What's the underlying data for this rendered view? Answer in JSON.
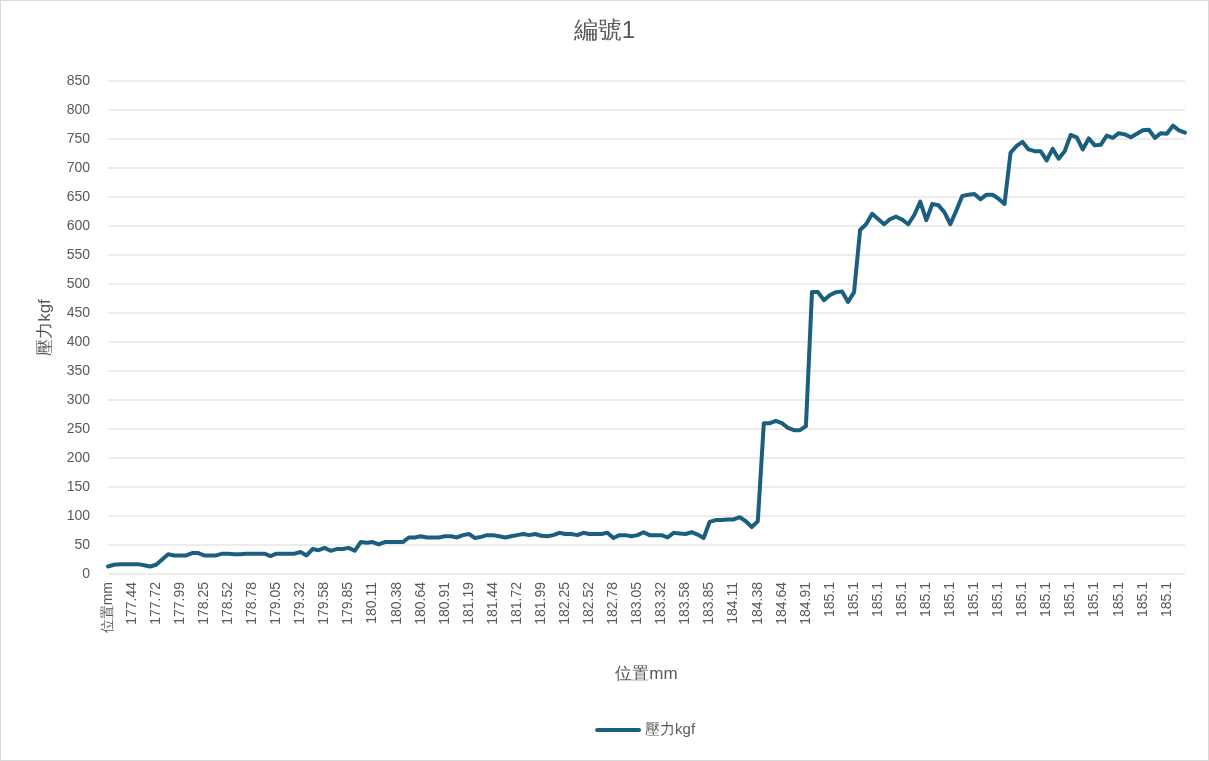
{
  "chart_data": {
    "type": "line",
    "title": "編號1",
    "xlabel": "位置mm",
    "ylabel": "壓力kgf",
    "categories": [
      "位置mm",
      null,
      null,
      null,
      "177.44",
      null,
      null,
      null,
      "177.72",
      null,
      null,
      null,
      "177.99",
      null,
      null,
      null,
      "178.25",
      null,
      null,
      null,
      "178.52",
      null,
      null,
      null,
      "178.78",
      null,
      null,
      null,
      "179.05",
      null,
      null,
      null,
      "179.32",
      null,
      null,
      null,
      "179.58",
      null,
      null,
      null,
      "179.85",
      null,
      null,
      null,
      "180.11",
      null,
      null,
      null,
      "180.38",
      null,
      null,
      null,
      "180.64",
      null,
      null,
      null,
      "180.91",
      null,
      null,
      null,
      "181.19",
      null,
      null,
      null,
      "181.44",
      null,
      null,
      null,
      "181.72",
      null,
      null,
      null,
      "181.99",
      null,
      null,
      null,
      "182.25",
      null,
      null,
      null,
      "182.52",
      null,
      null,
      null,
      "182.78",
      null,
      null,
      null,
      "183.05",
      null,
      null,
      null,
      "183.32",
      null,
      null,
      null,
      "183.58",
      null,
      null,
      null,
      "183.85",
      null,
      null,
      null,
      "184.11",
      null,
      null,
      null,
      "184.38",
      null,
      null,
      null,
      "184.64",
      null,
      null,
      null,
      "184.91",
      null,
      null,
      null,
      "185.1",
      null,
      null,
      null,
      "185.1",
      null,
      null,
      null,
      "185.1",
      null,
      null,
      null,
      "185.1",
      null,
      null,
      null,
      "185.1",
      null,
      null,
      null,
      "185.1",
      null,
      null,
      null,
      "185.1",
      null,
      null,
      null,
      "185.1",
      null,
      null,
      null,
      "185.1",
      null,
      null,
      null,
      "185.1",
      null,
      null,
      null,
      "185.1",
      null,
      null,
      null,
      "185.1",
      null,
      null,
      null,
      "185.1",
      null,
      null,
      null,
      "185.1",
      null,
      null,
      null,
      "185.1",
      null,
      null,
      null
    ],
    "series": [
      {
        "name": "壓力kgf",
        "color": "#1b5f80",
        "values": [
          13,
          16,
          17,
          17,
          17,
          17,
          15,
          13,
          16,
          25,
          34,
          32,
          32,
          32,
          36,
          36,
          32,
          32,
          32,
          35,
          35,
          34,
          34,
          35,
          35,
          35,
          35,
          31,
          35,
          35,
          35,
          35,
          38,
          32,
          43,
          41,
          45,
          40,
          43,
          43,
          45,
          40,
          55,
          54,
          55,
          51,
          55,
          55,
          55,
          55,
          63,
          63,
          65,
          63,
          63,
          63,
          65,
          65,
          63,
          67,
          69,
          62,
          64,
          67,
          67,
          65,
          63,
          65,
          67,
          69,
          67,
          69,
          66,
          65,
          67,
          71,
          69,
          69,
          67,
          71,
          69,
          69,
          69,
          71,
          62,
          67,
          67,
          65,
          67,
          72,
          67,
          67,
          67,
          63,
          71,
          70,
          69,
          72,
          68,
          62,
          90,
          93,
          93,
          94,
          94,
          98,
          91,
          81,
          91,
          260,
          260,
          264,
          260,
          252,
          248,
          248,
          255,
          486,
          486,
          472,
          481,
          486,
          487,
          469,
          486,
          593,
          603,
          621,
          612,
          603,
          612,
          616,
          611,
          603,
          619,
          642,
          610,
          638,
          636,
          624,
          603,
          627,
          652,
          654,
          655,
          646,
          654,
          654,
          647,
          638,
          726,
          738,
          745,
          732,
          729,
          729,
          713,
          733,
          716,
          729,
          757,
          753,
          732,
          751,
          739,
          740,
          756,
          752,
          760,
          758,
          753,
          759,
          765,
          766,
          752,
          760,
          759,
          773,
          765,
          761
        ]
      }
    ],
    "ylim": [
      0,
      850
    ],
    "yticks": [
      0,
      50,
      100,
      150,
      200,
      250,
      300,
      350,
      400,
      450,
      500,
      550,
      600,
      650,
      700,
      750,
      800,
      850
    ],
    "grid": "y",
    "legend": "bottom"
  }
}
